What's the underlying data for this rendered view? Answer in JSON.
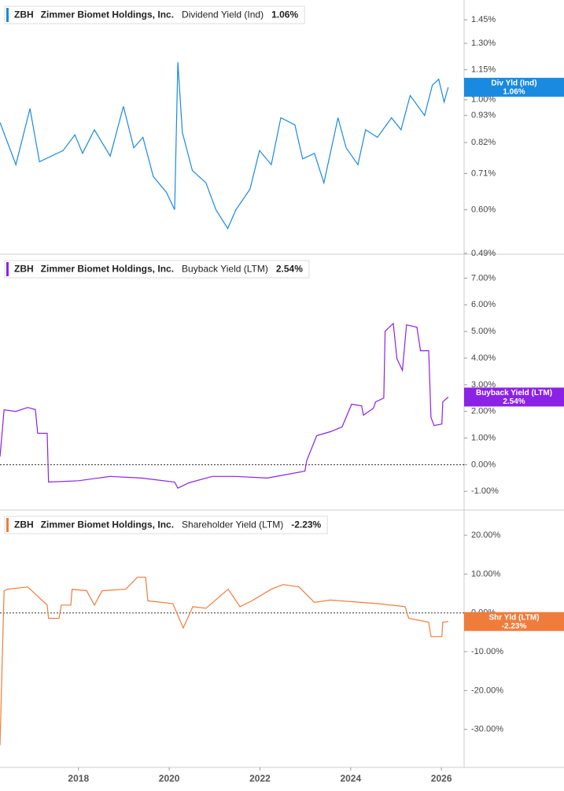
{
  "chart_data": [
    {
      "type": "line",
      "ticker": "ZBH",
      "company": "Zimmer Biomet Holdings, Inc.",
      "current_label": "1.06%",
      "tag_title": "Div Yld (Ind)",
      "log": true,
      "zero_line": false,
      "xlim": [
        2016.27,
        2026.5
      ],
      "ylim": [
        0.488,
        1.59
      ],
      "yticks": [
        {
          "value": 1.45,
          "label": "1.45%"
        },
        {
          "value": 1.3,
          "label": "1.30%"
        },
        {
          "value": 1.15,
          "label": "1.15%"
        },
        {
          "value": 1.0,
          "label": "1.00%"
        },
        {
          "value": 0.93,
          "label": "0.93%"
        },
        {
          "value": 0.82,
          "label": "0.82%"
        },
        {
          "value": 0.71,
          "label": "0.71%"
        },
        {
          "value": 0.6,
          "label": "0.60%"
        },
        {
          "value": 0.49,
          "label": "0.49%"
        }
      ],
      "x": [
        2016.27,
        2016.62,
        2016.93,
        2017.14,
        2017.66,
        2017.92,
        2018.09,
        2018.35,
        2018.7,
        2018.99,
        2019.22,
        2019.42,
        2019.65,
        2019.94,
        2020.12,
        2020.19,
        2020.29,
        2020.51,
        2020.81,
        2021.03,
        2021.29,
        2021.47,
        2021.78,
        2021.99,
        2022.25,
        2022.46,
        2022.77,
        2022.94,
        2023.2,
        2023.41,
        2023.72,
        2023.9,
        2024.16,
        2024.33,
        2024.59,
        2024.9,
        2025.11,
        2025.31,
        2025.45,
        2025.63,
        2025.8,
        2025.94,
        2026.06,
        2026.15
      ],
      "series": [
        {
          "name": "Dividend Yield (Ind)",
          "color": "#1a8ae0",
          "values": [
            0.9,
            0.74,
            0.96,
            0.75,
            0.79,
            0.85,
            0.78,
            0.87,
            0.77,
            0.97,
            0.8,
            0.84,
            0.7,
            0.65,
            0.6,
            1.19,
            0.86,
            0.72,
            0.68,
            0.6,
            0.55,
            0.6,
            0.66,
            0.79,
            0.74,
            0.92,
            0.89,
            0.76,
            0.78,
            0.68,
            0.92,
            0.8,
            0.74,
            0.87,
            0.84,
            0.92,
            0.87,
            1.02,
            0.98,
            0.93,
            1.07,
            1.1,
            0.99,
            1.06
          ]
        }
      ]
    },
    {
      "type": "line",
      "ticker": "ZBH",
      "company": "Zimmer Biomet Holdings, Inc.",
      "current_label": "2.54%",
      "tag_title": "Buyback Yield (LTM)",
      "log": false,
      "zero_line": true,
      "xlim": [
        2016.27,
        2026.5
      ],
      "ylim": [
        -1.7,
        7.9
      ],
      "yticks": [
        {
          "value": 7,
          "label": "7.00%"
        },
        {
          "value": 6,
          "label": "6.00%"
        },
        {
          "value": 5,
          "label": "5.00%"
        },
        {
          "value": 4,
          "label": "4.00%"
        },
        {
          "value": 3,
          "label": "3.00%"
        },
        {
          "value": 2,
          "label": "2.00%"
        },
        {
          "value": 1,
          "label": "1.00%"
        },
        {
          "value": 0,
          "label": "0.00%"
        },
        {
          "value": -1,
          "label": "-1.00%"
        }
      ],
      "x": [
        2016.27,
        2016.36,
        2016.62,
        2016.88,
        2017.05,
        2017.1,
        2017.31,
        2017.34,
        2018.0,
        2018.7,
        2019.39,
        2020.12,
        2020.19,
        2020.43,
        2020.95,
        2021.47,
        2022.16,
        2022.99,
        2023.03,
        2023.25,
        2023.55,
        2023.81,
        2024.02,
        2024.24,
        2024.28,
        2024.5,
        2024.55,
        2024.73,
        2024.76,
        2024.94,
        2025.02,
        2025.14,
        2025.23,
        2025.46,
        2025.54,
        2025.72,
        2025.77,
        2025.84,
        2026.01,
        2026.03,
        2026.15
      ],
      "series": [
        {
          "name": "Buyback Yield (LTM)",
          "color": "#8b22e6",
          "values": [
            0.3,
            2.06,
            2.0,
            2.15,
            2.07,
            1.18,
            1.18,
            -0.65,
            -0.6,
            -0.44,
            -0.5,
            -0.65,
            -0.88,
            -0.68,
            -0.44,
            -0.44,
            -0.5,
            -0.24,
            0.15,
            1.09,
            1.24,
            1.42,
            2.27,
            2.21,
            1.86,
            2.12,
            2.36,
            2.5,
            5.01,
            5.3,
            3.98,
            3.54,
            5.25,
            5.16,
            4.28,
            4.28,
            1.77,
            1.47,
            1.53,
            2.36,
            2.54
          ]
        }
      ]
    },
    {
      "type": "line",
      "ticker": "ZBH",
      "company": "Zimmer Biomet Holdings, Inc.",
      "current_label": "-2.23%",
      "tag_title": "Shr Yld (LTM)",
      "log": false,
      "zero_line": true,
      "xlim": [
        2016.27,
        2026.5
      ],
      "ylim": [
        -39.8,
        26.5
      ],
      "yticks": [
        {
          "value": 20,
          "label": "20.00%"
        },
        {
          "value": 10,
          "label": "10.00%"
        },
        {
          "value": 0,
          "label": "0.00%"
        },
        {
          "value": -10,
          "label": "-10.00%"
        },
        {
          "value": -20,
          "label": "-20.00%"
        },
        {
          "value": -30,
          "label": "-30.00%"
        }
      ],
      "xticks": [
        2018,
        2020,
        2022,
        2024,
        2026
      ],
      "x": [
        2016.27,
        2016.36,
        2016.44,
        2016.88,
        2017.31,
        2017.34,
        2017.57,
        2017.62,
        2017.83,
        2017.86,
        2018.18,
        2018.35,
        2018.52,
        2019.04,
        2019.3,
        2019.48,
        2019.53,
        2020.08,
        2020.31,
        2020.52,
        2020.81,
        2021.3,
        2021.56,
        2021.82,
        2022.25,
        2022.51,
        2022.86,
        2023.2,
        2023.55,
        2024.59,
        2025.2,
        2025.28,
        2025.72,
        2025.77,
        2026.01,
        2026.03,
        2026.15
      ],
      "series": [
        {
          "name": "Shareholder Yield (LTM)",
          "color": "#f07c3c",
          "values": [
            -34.1,
            5.7,
            6.1,
            6.7,
            2.0,
            -1.4,
            -1.4,
            2.0,
            2.0,
            6.1,
            5.7,
            2.0,
            5.7,
            6.1,
            9.2,
            9.2,
            3.1,
            2.4,
            -3.9,
            1.6,
            1.2,
            6.1,
            1.6,
            3.1,
            6.1,
            7.3,
            6.7,
            2.7,
            3.3,
            2.4,
            1.6,
            -1.4,
            -2.4,
            -6.1,
            -6.1,
            -2.4,
            -2.23
          ]
        }
      ]
    }
  ]
}
